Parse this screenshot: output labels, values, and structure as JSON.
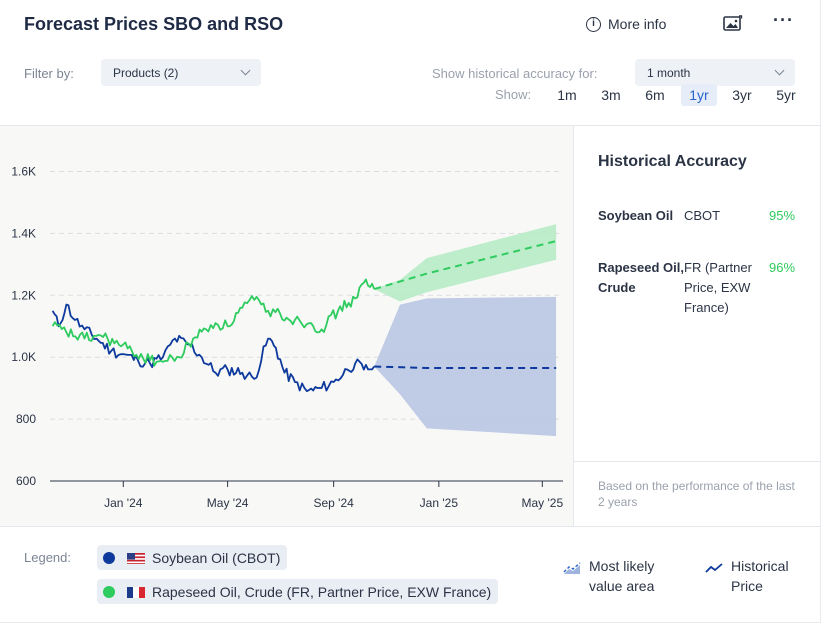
{
  "header": {
    "title": "Forecast Prices SBO and RSO",
    "more_info": "More info"
  },
  "filters": {
    "filter_label": "Filter by:",
    "products_value": "Products (2)",
    "accuracy_label": "Show historical accuracy for:",
    "accuracy_value": "1 month",
    "show_label": "Show:",
    "ranges": [
      "1m",
      "3m",
      "6m",
      "1yr",
      "3yr",
      "5yr"
    ],
    "active_range": "1yr"
  },
  "chart_data": {
    "type": "line",
    "x_axis_ticks": [
      "Jan '24",
      "May '24",
      "Sep '24",
      "Jan '25",
      "May '25"
    ],
    "y_axis_ticks": [
      "600",
      "800",
      "1.0K",
      "1.2K",
      "1.4K",
      "1.6K"
    ],
    "ylim": [
      600,
      1650
    ],
    "grid": true,
    "series": [
      {
        "name": "Soybean Oil (CBOT)",
        "color": "#0d3a9c",
        "historical": [
          [
            "2023-10-25",
            1150
          ],
          [
            "2023-11-01",
            1100
          ],
          [
            "2023-11-10",
            1170
          ],
          [
            "2023-11-20",
            1120
          ],
          [
            "2023-12-01",
            1090
          ],
          [
            "2023-12-15",
            1060
          ],
          [
            "2024-01-01",
            1020
          ],
          [
            "2024-01-15",
            1010
          ],
          [
            "2024-02-01",
            990
          ],
          [
            "2024-02-15",
            980
          ],
          [
            "2024-03-01",
            1000
          ],
          [
            "2024-03-15",
            1060
          ],
          [
            "2024-04-01",
            1040
          ],
          [
            "2024-04-15",
            1000
          ],
          [
            "2024-05-01",
            950
          ],
          [
            "2024-05-15",
            960
          ],
          [
            "2024-06-01",
            950
          ],
          [
            "2024-06-15",
            930
          ],
          [
            "2024-07-01",
            1060
          ],
          [
            "2024-07-10",
            1030
          ],
          [
            "2024-07-20",
            950
          ],
          [
            "2024-08-01",
            920
          ],
          [
            "2024-08-15",
            890
          ],
          [
            "2024-09-01",
            900
          ],
          [
            "2024-09-15",
            920
          ],
          [
            "2024-10-01",
            960
          ],
          [
            "2024-10-10",
            980
          ],
          [
            "2024-10-20",
            960
          ],
          [
            "2024-11-01",
            970
          ]
        ],
        "forecast": [
          [
            "2024-11-01",
            970
          ],
          [
            "2025-01-01",
            965
          ],
          [
            "2025-05-31",
            965
          ]
        ],
        "forecast_band": [
          [
            "2024-11-01",
            970,
            970
          ],
          [
            "2024-12-01",
            880,
            1170
          ],
          [
            "2025-01-01",
            770,
            1190
          ],
          [
            "2025-05-31",
            745,
            1195
          ]
        ]
      },
      {
        "name": "Rapeseed Oil, Crude (FR, Partner Price, EXW France)",
        "color": "#2ecb5e",
        "historical": [
          [
            "2023-10-25",
            1100
          ],
          [
            "2023-11-10",
            1080
          ],
          [
            "2023-12-01",
            1060
          ],
          [
            "2023-12-20",
            1070
          ],
          [
            "2024-01-10",
            1040
          ],
          [
            "2024-01-25",
            1020
          ],
          [
            "2024-02-15",
            990
          ],
          [
            "2024-03-01",
            985
          ],
          [
            "2024-03-20",
            1000
          ],
          [
            "2024-04-05",
            1060
          ],
          [
            "2024-04-20",
            1090
          ],
          [
            "2024-05-01",
            1110
          ],
          [
            "2024-05-15",
            1100
          ],
          [
            "2024-06-01",
            1160
          ],
          [
            "2024-06-15",
            1185
          ],
          [
            "2024-07-01",
            1150
          ],
          [
            "2024-07-15",
            1140
          ],
          [
            "2024-08-01",
            1120
          ],
          [
            "2024-08-20",
            1110
          ],
          [
            "2024-09-01",
            1090
          ],
          [
            "2024-09-20",
            1150
          ],
          [
            "2024-10-10",
            1190
          ],
          [
            "2024-10-20",
            1240
          ],
          [
            "2024-11-01",
            1220
          ]
        ],
        "forecast": [
          [
            "2024-11-01",
            1220
          ],
          [
            "2025-01-01",
            1270
          ],
          [
            "2025-05-31",
            1375
          ]
        ],
        "forecast_band": [
          [
            "2024-11-01",
            1220,
            1220
          ],
          [
            "2024-12-01",
            1180,
            1250
          ],
          [
            "2025-01-01",
            1210,
            1320
          ],
          [
            "2025-05-31",
            1315,
            1430
          ]
        ]
      }
    ]
  },
  "side_panel": {
    "title": "Historical Accuracy",
    "rows": [
      {
        "name": "Soybean Oil",
        "exchange": "CBOT",
        "pct": "95%"
      },
      {
        "name": "Rapeseed Oil, Crude",
        "exchange": "FR (Partner Price, EXW France)",
        "pct": "96%"
      }
    ],
    "note": "Based on the performance of the last 2 years"
  },
  "legend": {
    "label": "Legend:",
    "items": [
      {
        "label": "Soybean Oil (CBOT)",
        "color": "#0d3a9c",
        "flag": "US"
      },
      {
        "label": "Rapeseed Oil, Crude (FR, Partner Price, EXW France)",
        "color": "#2ecb5e",
        "flag": "FR"
      }
    ],
    "most_likely": "Most likely value area",
    "historical": "Historical Price"
  }
}
